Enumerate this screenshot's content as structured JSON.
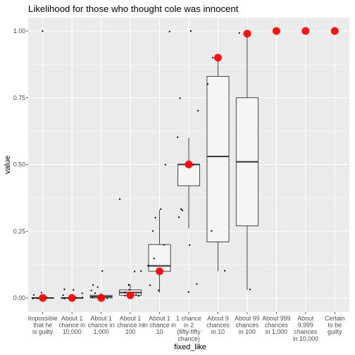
{
  "chart_data": {
    "type": "boxplot",
    "title": "Likelihood for those who thought cole was innocent",
    "xlabel": "fixed_like",
    "ylabel": "value",
    "ylim": [
      0,
      1
    ],
    "yticks": [
      "0.00",
      "0.25",
      "0.50",
      "0.75",
      "1.00"
    ],
    "grid": true,
    "colors": {
      "panel": "#ebebeb",
      "grid_major": "#ffffff",
      "box_fill": "#f5f5f5",
      "box_line": "#333333",
      "point": "#000000",
      "jitter_colored": "#6b7fb3",
      "highlight": "#ff0000"
    },
    "categories": [
      {
        "label": [
          "Impossible",
          "that he",
          "is guilty"
        ],
        "box": {
          "lower": 0.0,
          "q1": 0.0,
          "median": 0.0,
          "q3": 0.0,
          "upper": 0.0
        },
        "highlight": 0.0,
        "points": [
          1.0,
          0.01,
          0.02,
          0.0,
          0.0,
          0.0,
          0.0,
          0.0,
          0.0
        ]
      },
      {
        "label": [
          "About 1",
          "chance in",
          "10,000"
        ],
        "box": {
          "lower": 0.0,
          "q1": 0.0,
          "median": 0.0,
          "q3": 0.0,
          "upper": 0.0
        },
        "highlight": 0.0,
        "points": [
          0.03,
          0.03,
          0.02,
          0.01,
          0.0,
          0.0,
          0.0,
          0.0,
          0.0
        ]
      },
      {
        "label": [
          "About 1",
          "chance in",
          "1,000"
        ],
        "box": {
          "lower": 0.0,
          "q1": 0.0,
          "median": 0.005,
          "q3": 0.01,
          "upper": 0.02
        },
        "highlight": 0.0,
        "points": [
          0.1,
          0.05,
          0.04,
          0.03,
          0.02,
          0.01,
          0.0,
          0.0,
          0.0,
          0.0
        ]
      },
      {
        "label": [
          "About 1",
          "chance in",
          "100"
        ],
        "box": {
          "lower": 0.01,
          "q1": 0.01,
          "median": 0.02,
          "q3": 0.03,
          "upper": 0.05
        },
        "highlight": 0.01,
        "points": [
          0.37,
          0.1,
          0.1,
          0.05,
          0.05,
          0.03,
          0.02,
          0.01,
          0.01,
          0.01
        ]
      },
      {
        "label": [
          "About 1",
          "in chance in",
          "10"
        ],
        "box": {
          "lower": 0.02,
          "q1": 0.1,
          "median": 0.12,
          "q3": 0.2,
          "upper": 0.33
        },
        "highlight": 0.1,
        "points": [
          1.0,
          0.5,
          0.33,
          0.3,
          0.25,
          0.2,
          0.15,
          0.12,
          0.1,
          0.05,
          0.03
        ]
      },
      {
        "label": [
          "1 chance",
          "in 2",
          "(fifty-fifty",
          "chance)"
        ],
        "box": {
          "lower": 0.26,
          "q1": 0.42,
          "median": 0.5,
          "q3": 0.5,
          "upper": 0.6
        },
        "highlight": 0.5,
        "points": [
          1.0,
          0.75,
          0.7,
          0.6,
          0.5,
          0.5,
          0.33,
          0.33,
          0.3,
          0.2,
          0.05,
          0.02
        ]
      },
      {
        "label": [
          "About 9",
          "chances",
          "in 10"
        ],
        "box": {
          "lower": 0.1,
          "q1": 0.21,
          "median": 0.53,
          "q3": 0.83,
          "upper": 0.9
        },
        "highlight": 0.9,
        "points": [
          0.9,
          0.8,
          0.25,
          0.1
        ]
      },
      {
        "label": [
          "About 99",
          "chances",
          "in 100"
        ],
        "box": {
          "lower": 0.03,
          "q1": 0.27,
          "median": 0.51,
          "q3": 0.75,
          "upper": 0.99
        },
        "highlight": 0.99,
        "points": [
          0.99,
          0.03
        ]
      },
      {
        "label": [
          "About 999",
          "chances",
          "in 1,000"
        ],
        "box": null,
        "highlight": 1.0,
        "points": []
      },
      {
        "label": [
          "About",
          "9,999",
          "chances",
          "in 10,000"
        ],
        "box": null,
        "highlight": 1.0,
        "points": []
      },
      {
        "label": [
          "Certain",
          "to be",
          "guilty"
        ],
        "box": null,
        "highlight": 1.0,
        "points": []
      }
    ]
  }
}
